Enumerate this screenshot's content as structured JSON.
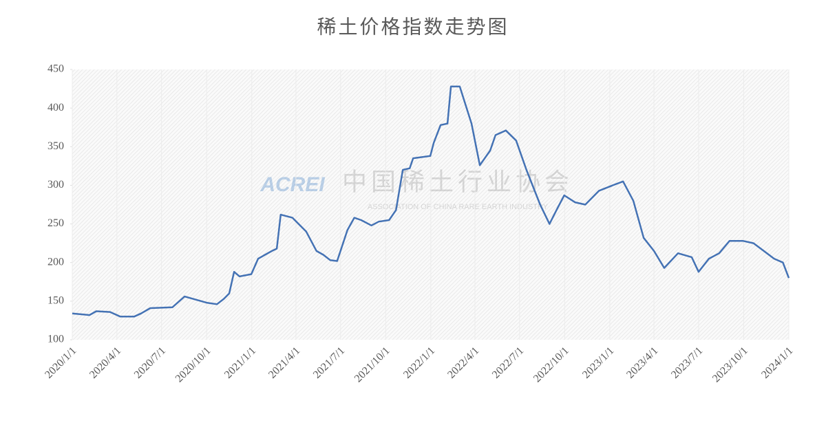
{
  "chart_data": {
    "type": "line",
    "title": "稀土价格指数走势图",
    "watermark": {
      "logo": "ACREI",
      "name": "中国稀土行业协会",
      "subname": "ASSOCIATION OF CHINA RARE EARTH INDUSTRY"
    },
    "xlim": [
      "2020/1/1",
      "2024/1/1"
    ],
    "xticks": [
      "2020/1/1",
      "2020/4/1",
      "2020/7/1",
      "2020/10/1",
      "2021/1/1",
      "2021/4/1",
      "2021/7/1",
      "2021/10/1",
      "2022/1/1",
      "2022/4/1",
      "2022/7/1",
      "2022/10/1",
      "2023/1/1",
      "2023/4/1",
      "2023/7/1",
      "2023/10/1",
      "2024/1/1"
    ],
    "ylim": [
      100,
      450
    ],
    "yticks": [
      100,
      150,
      200,
      250,
      300,
      350,
      400,
      450
    ],
    "grid": "x",
    "series": [
      {
        "color": "#4472b4",
        "x": [
          "2020/1/1",
          "2020/2/5",
          "2020/2/19",
          "2020/3/18",
          "2020/4/8",
          "2020/5/6",
          "2020/5/20",
          "2020/6/8",
          "2020/7/23",
          "2020/8/17",
          "2020/10/1",
          "2020/10/22",
          "2020/11/5",
          "2020/11/16",
          "2020/11/26",
          "2020/12/7",
          "2020/12/31",
          "2021/1/14",
          "2021/2/11",
          "2021/2/21",
          "2021/3/1",
          "2021/3/25",
          "2021/4/22",
          "2021/5/13",
          "2021/5/27",
          "2021/6/10",
          "2021/6/24",
          "2021/7/15",
          "2021/7/29",
          "2021/8/12",
          "2021/9/2",
          "2021/9/17",
          "2021/10/8",
          "2021/10/22",
          "2021/11/5",
          "2021/11/19",
          "2021/11/26",
          "2021/12/31",
          "2022/1/7",
          "2022/1/21",
          "2022/2/4",
          "2022/2/11",
          "2022/3/1",
          "2022/3/25",
          "2022/4/11",
          "2022/5/2",
          "2022/5/13",
          "2022/6/3",
          "2022/6/24",
          "2022/7/15",
          "2022/8/12",
          "2022/8/31",
          "2022/9/16",
          "2022/9/30",
          "2022/10/22",
          "2022/11/12",
          "2022/12/10",
          "2023/1/7",
          "2023/1/28",
          "2023/2/18",
          "2023/3/11",
          "2023/4/1",
          "2023/4/22",
          "2023/5/20",
          "2023/6/17",
          "2023/7/1",
          "2023/7/22",
          "2023/8/12",
          "2023/9/2",
          "2023/9/30",
          "2023/10/21",
          "2023/11/11",
          "2023/12/2",
          "2023/12/20",
          "2024/1/1"
        ],
        "values": [
          134,
          132,
          137,
          136,
          130,
          130,
          134,
          141,
          142,
          156,
          148,
          146,
          153,
          160,
          188,
          182,
          185,
          205,
          215,
          218,
          262,
          258,
          240,
          215,
          210,
          203,
          202,
          242,
          258,
          255,
          248,
          253,
          255,
          268,
          320,
          322,
          335,
          338,
          355,
          378,
          380,
          428,
          428,
          380,
          326,
          345,
          365,
          371,
          358,
          320,
          275,
          250,
          270,
          287,
          278,
          275,
          293,
          300,
          305,
          280,
          232,
          215,
          193,
          212,
          207,
          188,
          205,
          212,
          228,
          228,
          225,
          215,
          205,
          200,
          180
        ]
      }
    ]
  }
}
